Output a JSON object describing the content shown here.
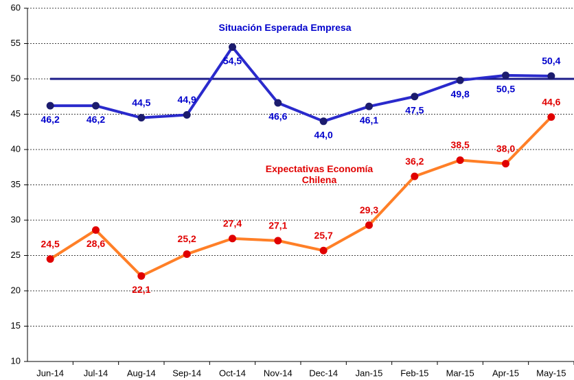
{
  "chart_data": {
    "type": "line",
    "categories": [
      "Jun-14",
      "Jul-14",
      "Aug-14",
      "Sep-14",
      "Oct-14",
      "Nov-14",
      "Dec-14",
      "Jan-15",
      "Feb-15",
      "Mar-15",
      "Apr-15",
      "May-15"
    ],
    "series": [
      {
        "name": "Situación Esperada Empresa",
        "color": "#2a2acc",
        "marker_color": "#1c1c6e",
        "label_color": "#0000cc",
        "values": [
          46.2,
          46.2,
          44.5,
          44.9,
          54.5,
          46.6,
          44.0,
          46.1,
          47.5,
          49.8,
          50.5,
          50.4
        ],
        "value_labels": [
          "46,2",
          "46,2",
          "44,5",
          "44,9",
          "54,5",
          "46,6",
          "44,0",
          "46,1",
          "47,5",
          "49,8",
          "50,5",
          "50,4"
        ]
      },
      {
        "name": "Expectativas Economía Chilena",
        "color": "#ff7f27",
        "marker_color": "#e00000",
        "label_color": "#e00000",
        "values": [
          24.5,
          28.6,
          22.1,
          25.2,
          27.4,
          27.1,
          25.7,
          29.3,
          36.2,
          38.5,
          38.0,
          44.6
        ],
        "value_labels": [
          "24,5",
          "28,6",
          "22,1",
          "25,2",
          "27,4",
          "27,1",
          "25,7",
          "29,3",
          "36,2",
          "38,5",
          "38,0",
          "44,6"
        ]
      }
    ],
    "reference_line": {
      "value": 50,
      "color": "#1c1c8a"
    },
    "ylim": [
      10,
      60
    ],
    "yticks": [
      10,
      15,
      20,
      25,
      30,
      35,
      40,
      45,
      50,
      55,
      60
    ],
    "grid": true
  }
}
